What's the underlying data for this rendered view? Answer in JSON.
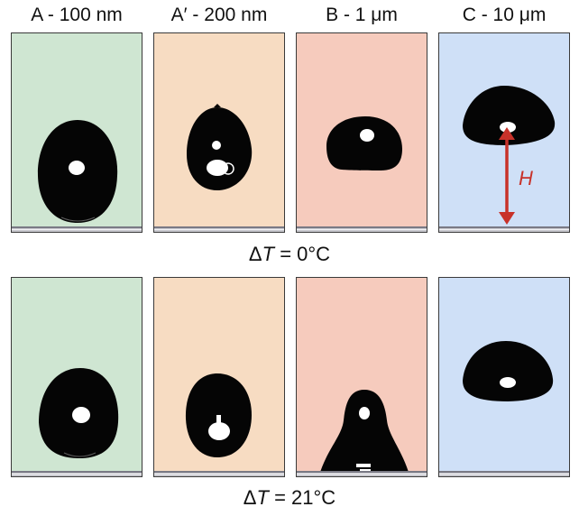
{
  "columns": [
    {
      "prefix": "A - 100 ",
      "unit": "nm",
      "color": "#cfe6d2"
    },
    {
      "prefix": "A′ - 200 ",
      "unit": "nm",
      "color": "#f7dcc2"
    },
    {
      "prefix": "B - 1 ",
      "unit": "μm",
      "color": "#f6cbbd"
    },
    {
      "prefix": "C - 10 ",
      "unit": "μm",
      "color": "#cfe0f7"
    }
  ],
  "conditions": [
    {
      "delta": "Δ",
      "var": "T",
      "rest": " = 0°C"
    },
    {
      "delta": "Δ",
      "var": "T",
      "rest": " = 21°C"
    }
  ],
  "annotation": {
    "label": "H",
    "color": "#c8322a"
  }
}
